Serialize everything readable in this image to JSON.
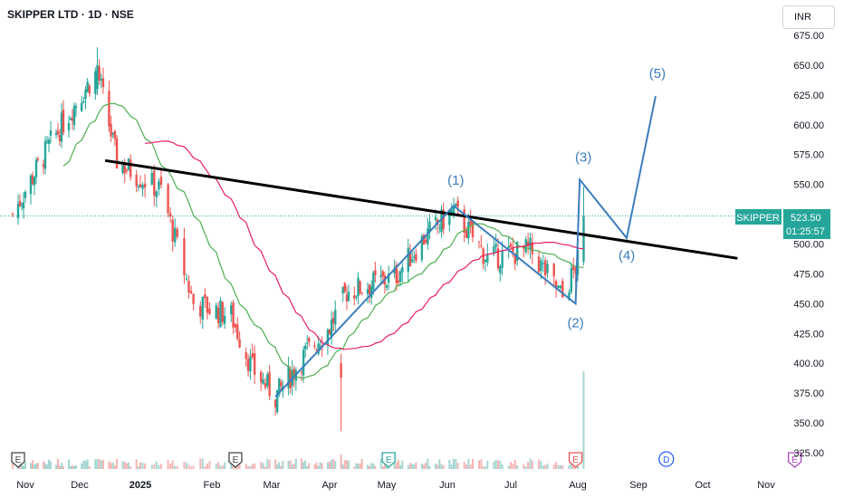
{
  "header": {
    "title": "SKIPPER LTD · 1D · NSE",
    "currency": "INR"
  },
  "price_tag": {
    "symbol": "SKIPPER",
    "price": "523.50",
    "countdown": "01:25:57"
  },
  "colors": {
    "up": "#26a69a",
    "down": "#ef5350",
    "ma_short": "#4caf50",
    "ma_long": "#e91e63",
    "trendline": "#000000",
    "wave": "#3b7dbd",
    "price_tag": "#26a69a"
  },
  "chart_data": {
    "type": "candlestick",
    "symbol": "SKIPPER LTD",
    "interval": "1D",
    "exchange": "NSE",
    "y_ticks": [
      "675.00",
      "650.00",
      "625.00",
      "600.00",
      "575.00",
      "550.00",
      "525.00",
      "500.00",
      "475.00",
      "450.00",
      "425.00",
      "400.00",
      "375.00",
      "350.00",
      "325.00"
    ],
    "x_ticks": [
      "Nov",
      "Dec",
      "2025",
      "Feb",
      "Mar",
      "Apr",
      "May",
      "Jun",
      "Jul",
      "Aug",
      "Sep",
      "Oct",
      "Nov"
    ],
    "ylim": [
      318,
      682
    ],
    "last_price": 523.5,
    "key_points": [
      {
        "date": "2024-10-25",
        "close": 525
      },
      {
        "date": "2024-11-15",
        "close": 585
      },
      {
        "date": "2024-12-10",
        "close": 645
      },
      {
        "date": "2024-12-20",
        "close": 570
      },
      {
        "date": "2025-01-10",
        "close": 545
      },
      {
        "date": "2025-01-24",
        "close": 450
      },
      {
        "date": "2025-02-10",
        "close": 440
      },
      {
        "date": "2025-02-20",
        "close": 395
      },
      {
        "date": "2025-03-03",
        "close": 372
      },
      {
        "date": "2025-03-20",
        "close": 410
      },
      {
        "date": "2025-04-01",
        "close": 430
      },
      {
        "date": "2025-04-10",
        "close": 460
      },
      {
        "date": "2025-05-05",
        "close": 472
      },
      {
        "date": "2025-05-20",
        "close": 505
      },
      {
        "date": "2025-06-04",
        "close": 528
      },
      {
        "date": "2025-06-20",
        "close": 488
      },
      {
        "date": "2025-07-10",
        "close": 495
      },
      {
        "date": "2025-07-25",
        "close": 455
      },
      {
        "date": "2025-08-01",
        "close": 485
      },
      {
        "date": "2025-08-04",
        "close": 523.5
      }
    ],
    "trendline": [
      {
        "date": "2024-12-14",
        "price": 570
      },
      {
        "date": "2025-10-18",
        "price": 488
      }
    ],
    "wave_labels": [
      {
        "label": "(1)",
        "date": "2025-06-05",
        "price": 533
      },
      {
        "label": "(2)",
        "date": "2025-07-31",
        "price": 450
      },
      {
        "label": "(3)",
        "date": "2025-08-02",
        "price": 554
      },
      {
        "label": "(4)",
        "date": "2025-08-26",
        "price": 505
      },
      {
        "label": "(5)",
        "date": "2025-09-09",
        "price": 624
      }
    ],
    "wave_path": [
      {
        "date": "2025-03-03",
        "price": 372
      },
      {
        "date": "2025-06-04",
        "price": 532
      },
      {
        "date": "2025-07-31",
        "price": 450
      },
      {
        "date": "2025-08-02",
        "price": 554
      },
      {
        "date": "2025-08-26",
        "price": 505
      },
      {
        "date": "2025-09-09",
        "price": 624
      }
    ],
    "events": [
      {
        "type": "E",
        "date": "2024-10-28"
      },
      {
        "type": "E",
        "date": "2025-02-12"
      },
      {
        "type": "E",
        "date": "2025-05-02"
      },
      {
        "type": "E",
        "date": "2025-07-31"
      },
      {
        "type": "D",
        "date": "2025-09-14"
      },
      {
        "type": "E",
        "date": "2025-11-15"
      }
    ]
  }
}
